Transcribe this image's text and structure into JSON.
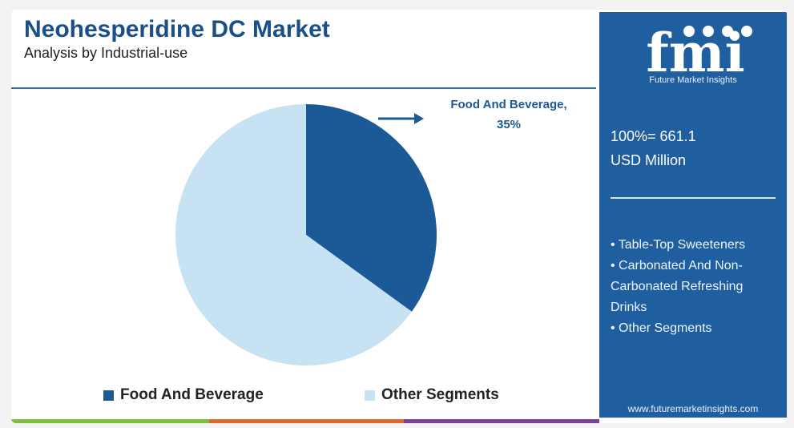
{
  "header": {
    "title": "Neohesperidine DC Market",
    "subtitle": "Analysis by Industrial-use"
  },
  "chart_data": {
    "type": "pie",
    "slices": [
      {
        "label": "Food And Beverage",
        "value": 35,
        "color": "#1b5a96"
      },
      {
        "label": "Other Segments",
        "value": 65,
        "color": "#c7e2f3"
      }
    ],
    "annotations": [
      {
        "text": "Food And Beverage, 35%"
      }
    ],
    "legend_position": "bottom"
  },
  "sidebar": {
    "brand": "fmi",
    "brand_subtitle": "Future Market Insights",
    "total_line1": "100%= 661.1",
    "total_line2": "USD Million",
    "segments": [
      "• Table-Top Sweeteners",
      "• Carbonated And Non-Carbonated Refreshing Drinks",
      "• Other Segments"
    ],
    "website": "www.futuremarketinsights.com",
    "accent_color": "#1f5fa0"
  },
  "bottom_bar_colors": [
    "#7bbf3a",
    "#e0662b",
    "#7b3f98"
  ]
}
